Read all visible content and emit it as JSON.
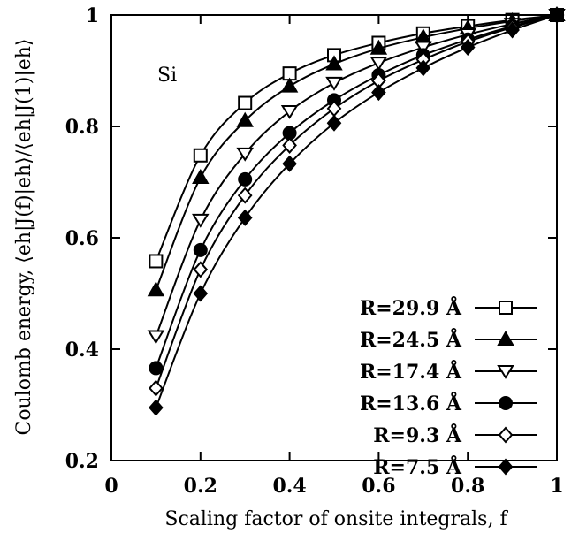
{
  "chart_data": {
    "type": "line",
    "xlabel": "Scaling factor of onsite integrals, f",
    "ylabel": "Coulomb energy, ⟨eh|J(f)|eh⟩/⟨eh|J(1)|eh⟩",
    "xlim": [
      0,
      1
    ],
    "ylim": [
      0.2,
      1
    ],
    "x_ticks": [
      "0",
      "0.2",
      "0.4",
      "0.6",
      "0.8",
      "1"
    ],
    "y_ticks": [
      "0.2",
      "0.4",
      "0.6",
      "0.8",
      "1"
    ],
    "annotation": "Si",
    "legend_position": "bottom-right",
    "grid": false,
    "x": [
      0.1,
      0.2,
      0.3,
      0.4,
      0.5,
      0.6,
      0.7,
      0.8,
      0.9,
      1.0
    ],
    "series": [
      {
        "name": "R=29.9 Å",
        "marker": "open-square",
        "values": [
          0.558,
          0.748,
          0.842,
          0.895,
          0.928,
          0.95,
          0.967,
          0.98,
          0.991,
          1.0
        ]
      },
      {
        "name": "R=24.5 Å",
        "marker": "filled-triangle-up",
        "values": [
          0.506,
          0.708,
          0.81,
          0.872,
          0.912,
          0.94,
          0.96,
          0.976,
          0.989,
          1.0
        ]
      },
      {
        "name": "R=17.4 Å",
        "marker": "open-triangle-down",
        "values": [
          0.423,
          0.632,
          0.751,
          0.827,
          0.878,
          0.914,
          0.942,
          0.965,
          0.984,
          1.0
        ]
      },
      {
        "name": "R=13.6 Å",
        "marker": "filled-circle",
        "values": [
          0.366,
          0.578,
          0.705,
          0.788,
          0.847,
          0.892,
          0.928,
          0.956,
          0.98,
          1.0
        ]
      },
      {
        "name": "R=9.3 Å",
        "marker": "open-diamond",
        "values": [
          0.33,
          0.543,
          0.676,
          0.766,
          0.832,
          0.882,
          0.92,
          0.952,
          0.978,
          1.0
        ]
      },
      {
        "name": "R=7.5 Å",
        "marker": "filled-diamond",
        "values": [
          0.295,
          0.5,
          0.636,
          0.733,
          0.806,
          0.861,
          0.905,
          0.942,
          0.973,
          1.0
        ]
      }
    ]
  }
}
